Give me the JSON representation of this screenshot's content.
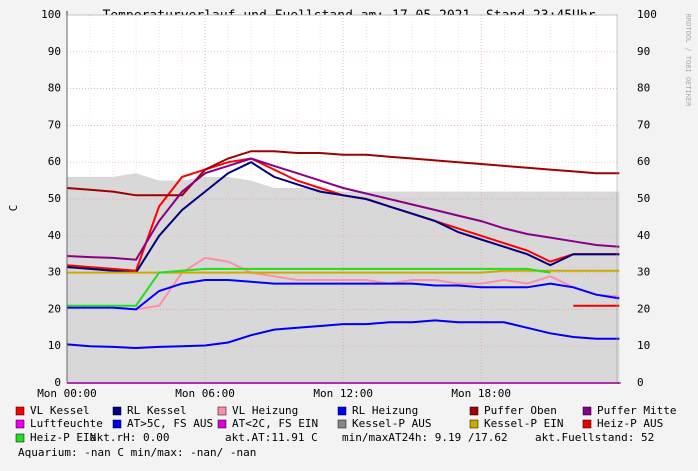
{
  "chart_data": {
    "type": "line",
    "title": "Temperaturverlauf und Fuellstand am: 17.05.2021, Stand 23:45Uhr",
    "y_label": "C",
    "side_text": "RRDTOOL / TOBI OETIKER",
    "x": [
      0,
      1,
      2,
      3,
      4,
      5,
      6,
      7,
      8,
      9,
      10,
      11,
      12,
      13,
      14,
      15,
      16,
      17,
      18,
      19,
      20,
      21,
      22,
      23,
      24
    ],
    "xlim": [
      0,
      23.9
    ],
    "xticks": [
      {
        "value": 0,
        "label": "Mon 00:00"
      },
      {
        "value": 6,
        "label": "Mon 06:00"
      },
      {
        "value": 12,
        "label": "Mon 12:00"
      },
      {
        "value": 18,
        "label": "Mon 18:00"
      }
    ],
    "ylim": [
      0,
      100
    ],
    "yticks": [
      0,
      10,
      20,
      30,
      40,
      50,
      60,
      70,
      80,
      90,
      100
    ],
    "grid": true,
    "series": [
      {
        "name": "VL Kessel",
        "color": "#ff0000",
        "values": [
          32,
          31.5,
          31,
          30.5,
          48,
          56,
          58,
          60,
          61,
          58,
          55,
          53,
          51,
          50,
          48,
          46,
          44,
          42,
          40,
          38,
          36,
          33,
          35,
          35,
          35
        ]
      },
      {
        "name": "RL Kessel",
        "color": "#000080",
        "values": [
          31.5,
          31,
          30.5,
          30,
          40,
          47,
          52,
          57,
          60,
          56,
          54,
          52,
          51,
          50,
          48,
          46,
          44,
          41,
          39,
          37,
          35,
          32,
          35,
          35,
          35
        ]
      },
      {
        "name": "VL Heizung",
        "color": "#ff8fa8",
        "values": [
          20.5,
          20.5,
          20.5,
          20,
          21,
          30,
          34,
          33,
          30,
          29,
          28,
          28,
          28,
          28,
          27,
          28,
          28,
          27,
          27,
          28,
          27,
          29,
          26,
          24,
          23.5
        ]
      },
      {
        "name": "RL Heizung",
        "color": "#0000ff",
        "values": [
          20.5,
          20.5,
          20.5,
          20,
          25,
          27,
          28,
          28,
          27.5,
          27,
          27,
          27,
          27,
          27,
          27,
          27,
          26.5,
          26.5,
          26,
          26,
          26,
          27,
          26,
          24,
          23
        ]
      },
      {
        "name": "Puffer Oben",
        "color": "#a00000",
        "values": [
          53,
          52.5,
          52,
          51,
          51,
          51,
          58,
          61,
          63,
          63,
          62.5,
          62.5,
          62,
          62,
          61.5,
          61,
          60.5,
          60,
          59.5,
          59,
          58.5,
          58,
          57.5,
          57,
          57
        ]
      },
      {
        "name": "Puffer Mitte",
        "color": "#880088",
        "values": [
          34.5,
          34.2,
          34,
          33.5,
          44,
          52,
          57,
          59,
          61,
          59,
          57,
          55,
          53,
          51.5,
          50,
          48.5,
          47,
          45.5,
          44,
          42,
          40.5,
          39.5,
          38.5,
          37.5,
          37
        ]
      },
      {
        "name": "Luftfeuchte",
        "color": "#ee00ee",
        "values": [
          0,
          0,
          0,
          0,
          0,
          0,
          0,
          0,
          0,
          0,
          0,
          0,
          0,
          0,
          0,
          0,
          0,
          0,
          0,
          0,
          0,
          0,
          0,
          0,
          0
        ]
      },
      {
        "name": "AT>5C, FS AUS",
        "color": "#0000ee",
        "values": [
          10.5,
          10,
          9.8,
          9.5,
          9.8,
          10,
          10.2,
          11,
          13,
          14.5,
          15,
          15.5,
          16,
          16,
          16.5,
          16.5,
          17,
          16.5,
          16.5,
          16.5,
          15,
          13.5,
          12.5,
          12,
          12
        ]
      },
      {
        "name": "AT<2C, FS EIN",
        "color": "#dd00dd"
      },
      {
        "name": "Kessel-P AUS",
        "color": "#888888",
        "fill": true,
        "values": [
          56,
          56,
          56,
          57,
          55,
          55,
          56,
          56,
          55,
          53,
          53,
          53,
          52,
          52,
          52,
          52,
          52,
          52,
          52,
          52,
          52,
          52,
          52,
          52,
          52
        ]
      },
      {
        "name": "Kessel-P EIN",
        "color": "#ccaa00",
        "values": [
          30,
          30,
          30,
          30,
          30,
          30,
          30,
          30,
          30,
          30,
          30,
          30,
          30,
          30,
          30,
          30,
          30,
          30,
          30,
          30.5,
          30.5,
          30.5,
          30.5,
          30.5,
          30.5
        ]
      },
      {
        "name": "Heiz-P AUS",
        "color": "#ee0000",
        "values": [
          null,
          null,
          null,
          null,
          null,
          null,
          null,
          null,
          null,
          null,
          null,
          null,
          null,
          null,
          null,
          null,
          null,
          null,
          null,
          null,
          null,
          null,
          21,
          21,
          21
        ]
      },
      {
        "name": "Heiz-P EIN",
        "color": "#22dd22",
        "values": [
          21,
          21,
          21,
          21,
          30,
          30.5,
          31,
          31,
          31,
          31,
          31,
          31,
          31,
          31,
          31,
          31,
          31,
          31,
          31,
          31,
          31,
          30,
          null,
          null,
          null
        ]
      }
    ],
    "footer": {
      "rh": "akt.rH: 0.00",
      "at": "akt.AT:11.91 C",
      "minmax": "min/maxAT24h: 9.19 /17.62",
      "level": "akt.Fuellstand:    52",
      "aquarium": "Aquarium: -nan C   min/max: -nan/ -nan"
    }
  }
}
